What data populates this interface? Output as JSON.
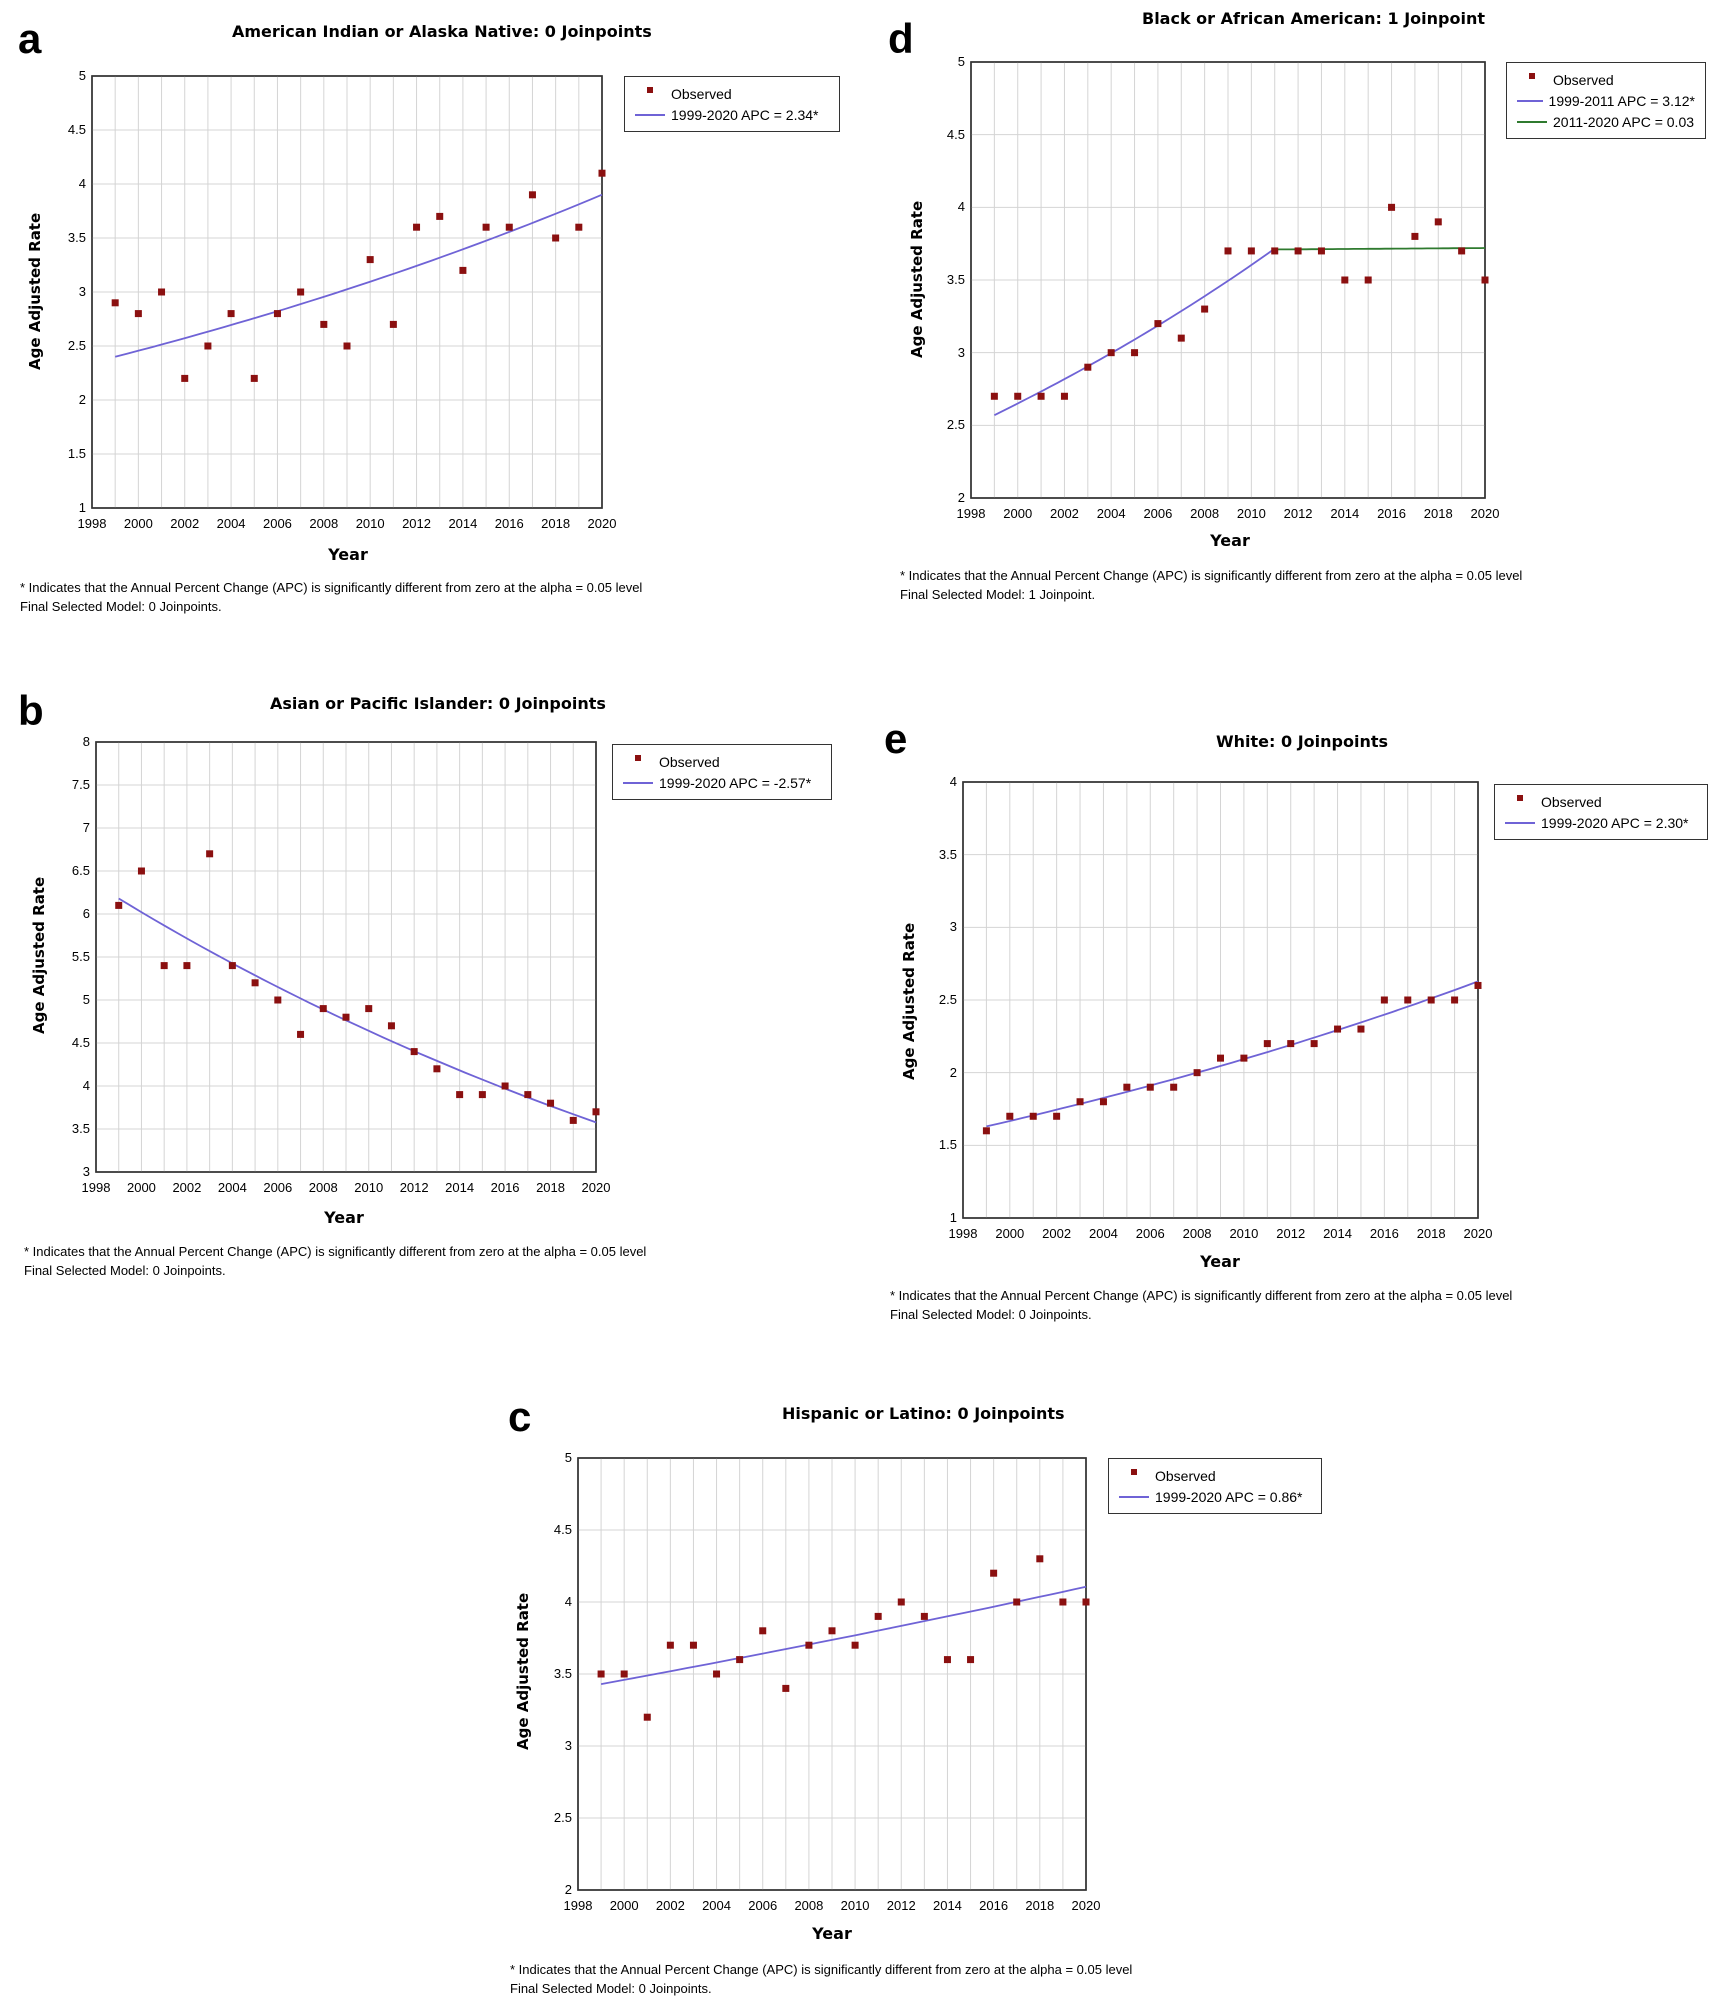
{
  "footnote": {
    "line1": "* Indicates that the Annual Percent Change (APC) is significantly different from zero at the alpha = 0.05 level"
  },
  "colors": {
    "observed": "#8b1010",
    "trend_blue": "#6f63d6",
    "trend_green": "#2f7a2f",
    "grid": "#d4d4d4",
    "frame": "#333333"
  },
  "panels": [
    {
      "letter": "a",
      "title": "American Indian or Alaska Native: 0 Joinpoints",
      "xlabel": "Year",
      "ylabel": "Age Adjusted Rate",
      "legend_observed": "Observed",
      "legend_lines": [
        "1999-2020 APC  = 2.34*"
      ],
      "final_model": "Final Selected Model: 0 Joinpoints."
    },
    {
      "letter": "b",
      "title": "Asian or Pacific Islander: 0 Joinpoints",
      "xlabel": "Year",
      "ylabel": "Age Adjusted Rate",
      "legend_observed": "Observed",
      "legend_lines": [
        "1999-2020 APC  = -2.57*"
      ],
      "final_model": "Final Selected Model: 0 Joinpoints."
    },
    {
      "letter": "c",
      "title": "Hispanic or Latino: 0 Joinpoints",
      "xlabel": "Year",
      "ylabel": "Age Adjusted Rate",
      "legend_observed": "Observed",
      "legend_lines": [
        "1999-2020 APC  = 0.86*"
      ],
      "final_model": "Final Selected Model: 0 Joinpoints."
    },
    {
      "letter": "d",
      "title": "Black or African American: 1 Joinpoint",
      "xlabel": "Year",
      "ylabel": "Age Adjusted Rate",
      "legend_observed": "Observed",
      "legend_lines": [
        "1999-2011 APC  = 3.12*",
        "2011-2020 APC  = 0.03"
      ],
      "final_model": "Final Selected Model: 1 Joinpoint."
    },
    {
      "letter": "e",
      "title": "White: 0 Joinpoints",
      "xlabel": "Year",
      "ylabel": "Age Adjusted Rate",
      "legend_observed": "Observed",
      "legend_lines": [
        "1999-2020 APC  = 2.30*"
      ],
      "final_model": "Final Selected Model: 0 Joinpoints."
    }
  ],
  "chart_data": [
    {
      "type": "scatter",
      "title": "American Indian or Alaska Native: 0 Joinpoints",
      "xlabel": "Year",
      "ylabel": "Age Adjusted Rate",
      "xlim": [
        1998,
        2020
      ],
      "ylim": [
        1,
        5
      ],
      "xticks": [
        "1998",
        "2000",
        "2002",
        "2004",
        "2006",
        "2008",
        "2010",
        "2012",
        "2014",
        "2016",
        "2018",
        "2020"
      ],
      "yticks": [
        "1",
        "1.5",
        "2",
        "2.5",
        "3",
        "3.5",
        "4",
        "4.5",
        "5"
      ],
      "grid": true,
      "legend_position": "top-right",
      "x": [
        1999,
        2000,
        2001,
        2002,
        2003,
        2004,
        2005,
        2006,
        2007,
        2008,
        2009,
        2010,
        2011,
        2012,
        2013,
        2014,
        2015,
        2016,
        2017,
        2018,
        2019,
        2020
      ],
      "series": [
        {
          "name": "Observed",
          "values": [
            2.9,
            2.8,
            3.0,
            2.2,
            2.5,
            2.8,
            2.2,
            2.8,
            3.0,
            2.7,
            2.5,
            3.3,
            2.7,
            3.6,
            3.7,
            3.2,
            3.6,
            3.6,
            3.9,
            3.5,
            3.6,
            4.1
          ]
        }
      ],
      "trend": [
        {
          "name": "1999-2020 APC  = 2.34*",
          "color": "blue",
          "segment": [
            1999,
            2020
          ],
          "start": 2.4,
          "apc": 2.34
        }
      ]
    },
    {
      "type": "scatter",
      "title": "Asian or Pacific Islander: 0 Joinpoints",
      "xlabel": "Year",
      "ylabel": "Age Adjusted Rate",
      "xlim": [
        1998,
        2020
      ],
      "ylim": [
        3,
        8
      ],
      "xticks": [
        "1998",
        "2000",
        "2002",
        "2004",
        "2006",
        "2008",
        "2010",
        "2012",
        "2014",
        "2016",
        "2018",
        "2020"
      ],
      "yticks": [
        "3",
        "3.5",
        "4",
        "4.5",
        "5",
        "5.5",
        "6",
        "6.5",
        "7",
        "7.5",
        "8"
      ],
      "grid": true,
      "legend_position": "top-right",
      "x": [
        1999,
        2000,
        2001,
        2002,
        2003,
        2004,
        2005,
        2006,
        2007,
        2008,
        2009,
        2010,
        2011,
        2012,
        2013,
        2014,
        2015,
        2016,
        2017,
        2018,
        2019,
        2020
      ],
      "series": [
        {
          "name": "Observed",
          "values": [
            6.1,
            6.5,
            5.4,
            5.4,
            6.7,
            5.4,
            5.2,
            5.0,
            4.6,
            4.9,
            4.8,
            4.9,
            4.7,
            4.4,
            4.2,
            3.9,
            3.9,
            4.0,
            3.9,
            3.8,
            3.6,
            3.7
          ]
        }
      ],
      "trend": [
        {
          "name": "1999-2020 APC  = -2.57*",
          "color": "blue",
          "segment": [
            1999,
            2020
          ],
          "start": 6.18,
          "apc": -2.57
        }
      ]
    },
    {
      "type": "scatter",
      "title": "Hispanic or Latino: 0 Joinpoints",
      "xlabel": "Year",
      "ylabel": "Age Adjusted Rate",
      "xlim": [
        1998,
        2020
      ],
      "ylim": [
        2,
        5
      ],
      "xticks": [
        "1998",
        "2000",
        "2002",
        "2004",
        "2006",
        "2008",
        "2010",
        "2012",
        "2014",
        "2016",
        "2018",
        "2020"
      ],
      "yticks": [
        "2",
        "2.5",
        "3",
        "3.5",
        "4",
        "4.5",
        "5"
      ],
      "grid": true,
      "legend_position": "top-right",
      "x": [
        1999,
        2000,
        2001,
        2002,
        2003,
        2004,
        2005,
        2006,
        2007,
        2008,
        2009,
        2010,
        2011,
        2012,
        2013,
        2014,
        2015,
        2016,
        2017,
        2018,
        2019,
        2020
      ],
      "series": [
        {
          "name": "Observed",
          "values": [
            3.5,
            3.5,
            3.2,
            3.7,
            3.7,
            3.5,
            3.6,
            3.8,
            3.4,
            3.7,
            3.8,
            3.7,
            3.9,
            4.0,
            3.9,
            3.6,
            3.6,
            4.2,
            4.0,
            4.3,
            4.0,
            4.0
          ]
        }
      ],
      "trend": [
        {
          "name": "1999-2020 APC  = 0.86*",
          "color": "blue",
          "segment": [
            1999,
            2020
          ],
          "start": 3.43,
          "apc": 0.86
        }
      ]
    },
    {
      "type": "scatter",
      "title": "Black or African American: 1 Joinpoint",
      "xlabel": "Year",
      "ylabel": "Age Adjusted Rate",
      "xlim": [
        1998,
        2020
      ],
      "ylim": [
        2,
        5
      ],
      "xticks": [
        "1998",
        "2000",
        "2002",
        "2004",
        "2006",
        "2008",
        "2010",
        "2012",
        "2014",
        "2016",
        "2018",
        "2020"
      ],
      "yticks": [
        "2",
        "2.5",
        "3",
        "3.5",
        "4",
        "4.5",
        "5"
      ],
      "grid": true,
      "legend_position": "top-right",
      "x": [
        1999,
        2000,
        2001,
        2002,
        2003,
        2004,
        2005,
        2006,
        2007,
        2008,
        2009,
        2010,
        2011,
        2012,
        2013,
        2014,
        2015,
        2016,
        2017,
        2018,
        2019,
        2020
      ],
      "series": [
        {
          "name": "Observed",
          "values": [
            2.7,
            2.7,
            2.7,
            2.7,
            2.9,
            3.0,
            3.0,
            3.2,
            3.1,
            3.3,
            3.7,
            3.7,
            3.7,
            3.7,
            3.7,
            3.5,
            3.5,
            4.0,
            3.8,
            3.9,
            3.7,
            3.5
          ]
        }
      ],
      "trend": [
        {
          "name": "1999-2011 APC  = 3.12*",
          "color": "blue",
          "segment": [
            1999,
            2011
          ],
          "start": 2.57,
          "apc": 3.12
        },
        {
          "name": "2011-2020 APC  = 0.03",
          "color": "green",
          "segment": [
            2011,
            2020
          ],
          "start": 3.71,
          "apc": 0.03
        }
      ]
    },
    {
      "type": "scatter",
      "title": "White: 0 Joinpoints",
      "xlabel": "Year",
      "ylabel": "Age Adjusted Rate",
      "xlim": [
        1998,
        2020
      ],
      "ylim": [
        1,
        4
      ],
      "xticks": [
        "1998",
        "2000",
        "2002",
        "2004",
        "2006",
        "2008",
        "2010",
        "2012",
        "2014",
        "2016",
        "2018",
        "2020"
      ],
      "yticks": [
        "1",
        "1.5",
        "2",
        "2.5",
        "3",
        "3.5",
        "4"
      ],
      "grid": true,
      "legend_position": "top-right",
      "x": [
        1999,
        2000,
        2001,
        2002,
        2003,
        2004,
        2005,
        2006,
        2007,
        2008,
        2009,
        2010,
        2011,
        2012,
        2013,
        2014,
        2015,
        2016,
        2017,
        2018,
        2019,
        2020
      ],
      "series": [
        {
          "name": "Observed",
          "values": [
            1.6,
            1.7,
            1.7,
            1.7,
            1.8,
            1.8,
            1.9,
            1.9,
            1.9,
            2.0,
            2.1,
            2.1,
            2.2,
            2.2,
            2.2,
            2.3,
            2.3,
            2.5,
            2.5,
            2.5,
            2.5,
            2.6
          ]
        }
      ],
      "trend": [
        {
          "name": "1999-2020 APC  = 2.30*",
          "color": "blue",
          "segment": [
            1999,
            2020
          ],
          "start": 1.63,
          "apc": 2.3
        }
      ]
    }
  ]
}
